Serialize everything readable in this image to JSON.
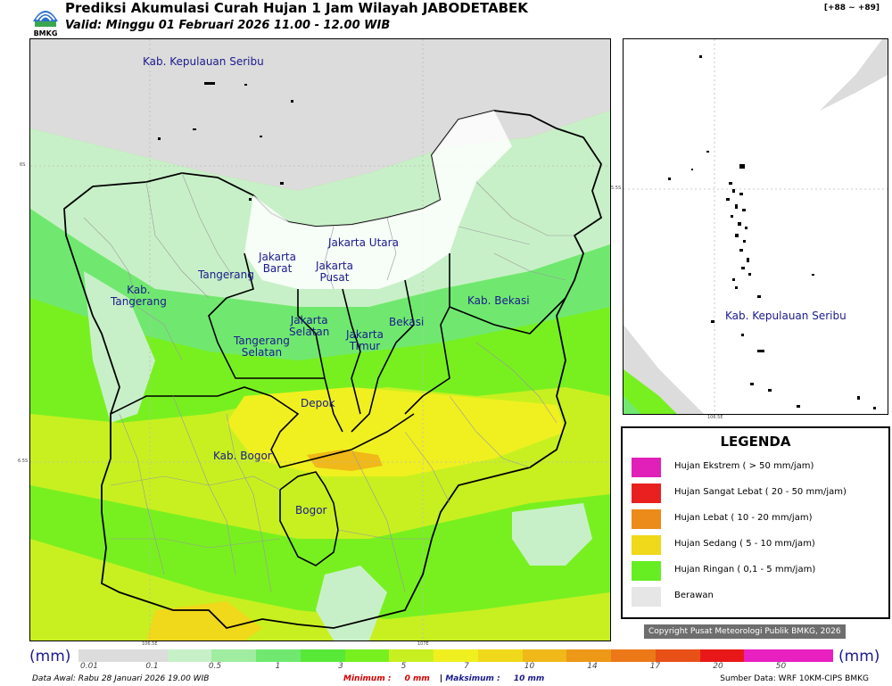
{
  "header": {
    "logo_text": "BMKG",
    "title": "Prediksi Akumulasi Curah Hujan 1 Jam Wilayah JABODETABEK",
    "valid": "Valid: Minggu 01 Februari 2026 11.00 - 12.00 WIB",
    "code": "[+88 ~ +89]"
  },
  "main_map": {
    "axis_labels": {
      "lat_top": "6S",
      "lat_bottom": "6.5S",
      "lon_left": "106.5E",
      "lon_right": "107E"
    },
    "regions": [
      {
        "name": "Kab. Kepulauan Seribu"
      },
      {
        "name": "Jakarta Utara"
      },
      {
        "name": "Jakarta\nBarat"
      },
      {
        "name": "Jakarta\nPusat"
      },
      {
        "name": "Tangerang"
      },
      {
        "name": "Kab.\nTangerang"
      },
      {
        "name": "Kab. Bekasi"
      },
      {
        "name": "Jakarta\nSelatan"
      },
      {
        "name": "Bekasi"
      },
      {
        "name": "Jakarta\nTimur"
      },
      {
        "name": "Tangerang\nSelatan"
      },
      {
        "name": "Depok"
      },
      {
        "name": "Kab. Bogor"
      },
      {
        "name": "Bogor"
      }
    ]
  },
  "inset_map": {
    "label": "Kab. Kepulauan Seribu",
    "axis_labels": {
      "lat": "5.5S",
      "lon": "106.5E"
    }
  },
  "legend": {
    "title": "LEGENDA",
    "items": [
      {
        "label": "Hujan Ekstrem ( > 50 mm/jam)",
        "color": "#e020b8"
      },
      {
        "label": "Hujan Sangat Lebat ( 20 - 50 mm/jam)",
        "color": "#e82020"
      },
      {
        "label": "Hujan Lebat ( 10 - 20 mm/jam)",
        "color": "#ec8a1a"
      },
      {
        "label": "Hujan Sedang ( 5 - 10 mm/jam)",
        "color": "#f0d81a"
      },
      {
        "label": "Hujan Ringan ( 0,1 - 5 mm/jam)",
        "color": "#66ee22"
      },
      {
        "label": "Berawan",
        "color": "#e6e6e6"
      }
    ]
  },
  "copyright": "Copyright Pusat Meteorologi Publik BMKG, 2026",
  "scale": {
    "unit": "(mm)",
    "colors": [
      "#dcdcdc",
      "#dcdcdc",
      "#c8f0c8",
      "#a0eca0",
      "#70e870",
      "#58e838",
      "#78f020",
      "#c8f020",
      "#f0f020",
      "#f0d81a",
      "#f0b818",
      "#ee9818",
      "#ec7818",
      "#e85018",
      "#e81818",
      "#e820c0",
      "#e820c0"
    ],
    "ticks": [
      "0.01",
      "0.1",
      "0.5",
      "1",
      "3",
      "5",
      "7",
      "10",
      "14",
      "17",
      "20",
      "50"
    ]
  },
  "footer": {
    "data_awal": "Data Awal: Rabu 28 Januari 2026 19.00 WIB",
    "min_label": "Minimum :",
    "min_value": "0 mm",
    "separator": "|",
    "max_label": "Maksimum :",
    "max_value": "10 mm",
    "source": "Sumber Data: WRF 10KM-CIPS BMKG"
  }
}
